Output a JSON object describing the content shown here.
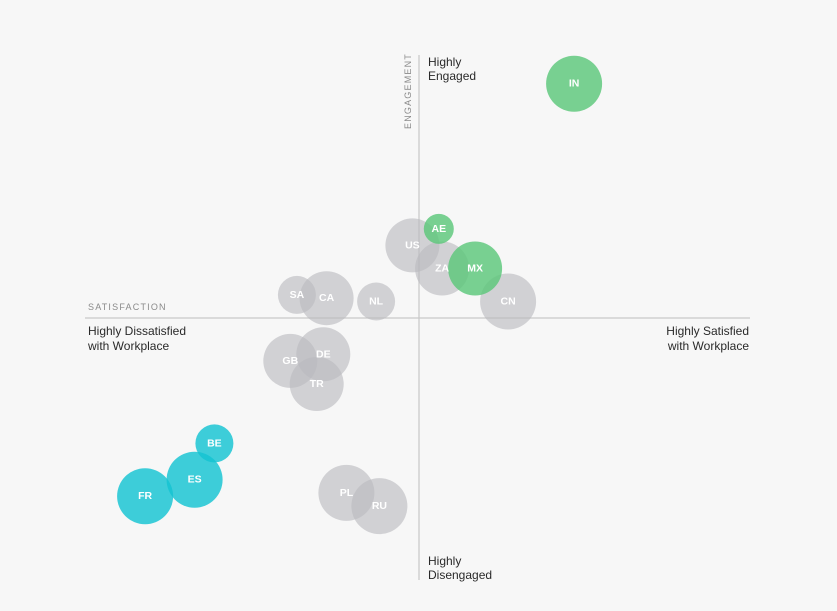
{
  "chart_data": {
    "type": "scatter",
    "xlabel": "SATISFACTION",
    "ylabel": "ENGAGEMENT",
    "x_pole_left": [
      "Highly Dissatisfied",
      "with Workplace"
    ],
    "x_pole_right": [
      "Highly Satisfied",
      "with Workplace"
    ],
    "y_pole_top": [
      "Highly",
      "Engaged"
    ],
    "y_pole_bottom": [
      "Highly",
      "Disengaged"
    ],
    "xlim": [
      -100,
      100
    ],
    "ylim": [
      -100,
      100
    ],
    "colors": {
      "positive": "#5bc77a",
      "neutral": "#b9b9be",
      "negative": "#14c3d2"
    },
    "points": [
      {
        "label": "IN",
        "x": 47,
        "y": 71,
        "size": 28,
        "group": "positive"
      },
      {
        "label": "US",
        "x": -2,
        "y": 22,
        "size": 27,
        "group": "neutral"
      },
      {
        "label": "ZA",
        "x": 7,
        "y": 15,
        "size": 27,
        "group": "neutral"
      },
      {
        "label": "CN",
        "x": 27,
        "y": 5,
        "size": 28,
        "group": "neutral"
      },
      {
        "label": "AE",
        "x": 6,
        "y": 27,
        "size": 15,
        "group": "positive"
      },
      {
        "label": "MX",
        "x": 17,
        "y": 15,
        "size": 27,
        "group": "positive"
      },
      {
        "label": "SA",
        "x": -37,
        "y": 7,
        "size": 19,
        "group": "neutral"
      },
      {
        "label": "CA",
        "x": -28,
        "y": 6,
        "size": 27,
        "group": "neutral"
      },
      {
        "label": "NL",
        "x": -13,
        "y": 5,
        "size": 19,
        "group": "neutral"
      },
      {
        "label": "GB",
        "x": -39,
        "y": -13,
        "size": 27,
        "group": "neutral"
      },
      {
        "label": "DE",
        "x": -29,
        "y": -11,
        "size": 27,
        "group": "neutral"
      },
      {
        "label": "TR",
        "x": -31,
        "y": -20,
        "size": 27,
        "group": "neutral"
      },
      {
        "label": "BE",
        "x": -62,
        "y": -38,
        "size": 19,
        "group": "negative"
      },
      {
        "label": "ES",
        "x": -68,
        "y": -49,
        "size": 28,
        "group": "negative"
      },
      {
        "label": "FR",
        "x": -83,
        "y": -54,
        "size": 28,
        "group": "negative"
      },
      {
        "label": "PL",
        "x": -22,
        "y": -53,
        "size": 28,
        "group": "neutral"
      },
      {
        "label": "RU",
        "x": -12,
        "y": -57,
        "size": 28,
        "group": "neutral"
      }
    ]
  }
}
